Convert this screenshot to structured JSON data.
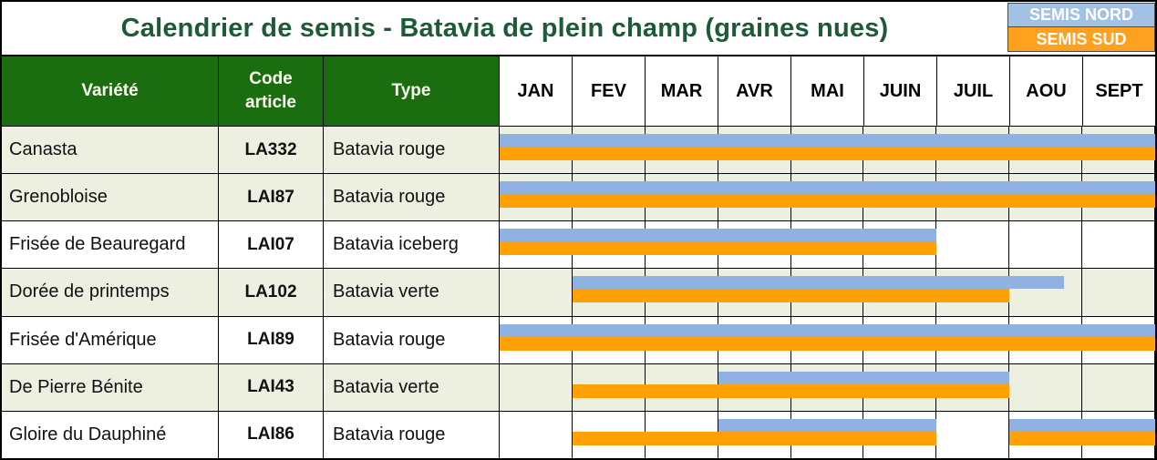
{
  "title": "Calendrier de semis - Batavia de plein champ (graines nues)",
  "legend": {
    "nord": {
      "label": "SEMIS NORD",
      "color": "#a3c1e5"
    },
    "sud": {
      "label": "SEMIS SUD",
      "color": "#ffa11f"
    }
  },
  "columns": {
    "variete": "Variété",
    "code": "Code article",
    "type": "Type"
  },
  "chart_data": {
    "type": "gantt",
    "title": "Calendrier de semis - Batavia de plein champ (graines nues)",
    "months": [
      "JAN",
      "FEV",
      "MAR",
      "AVR",
      "MAI",
      "JUIN",
      "JUIL",
      "AOU",
      "SEPT"
    ],
    "span_units": "month index: 0 = start of JAN, 9 = end of SEPT",
    "series_legend": [
      "SEMIS NORD",
      "SEMIS SUD"
    ],
    "colors": {
      "semis_nord": "#8fb2e3",
      "semis_sud": "#ffa005",
      "header_green": "#1a6e10",
      "title_green": "#1d5b38",
      "row_shade": "#edf0e1"
    },
    "rows": [
      {
        "variete": "Canasta",
        "code": "LA332",
        "type": "Batavia rouge",
        "shaded": true,
        "nord": [
          [
            0,
            9
          ]
        ],
        "sud": [
          [
            0,
            9
          ]
        ]
      },
      {
        "variete": "Grenobloise",
        "code": "LAI87",
        "type": "Batavia rouge",
        "shaded": true,
        "nord": [
          [
            0,
            9
          ]
        ],
        "sud": [
          [
            0,
            9
          ]
        ]
      },
      {
        "variete": "Frisée de Beauregard",
        "code": "LAI07",
        "type": "Batavia iceberg",
        "shaded": false,
        "nord": [
          [
            0,
            6
          ]
        ],
        "sud": [
          [
            0,
            6
          ]
        ]
      },
      {
        "variete": "Dorée de printemps",
        "code": "LA102",
        "type": "Batavia verte",
        "shaded": true,
        "nord": [
          [
            1,
            7.75
          ]
        ],
        "sud": [
          [
            1,
            7
          ]
        ]
      },
      {
        "variete": "Frisée d'Amérique",
        "code": "LAI89",
        "type": "Batavia rouge",
        "shaded": false,
        "nord": [
          [
            0,
            9
          ]
        ],
        "sud": [
          [
            0,
            9
          ]
        ]
      },
      {
        "variete": "De Pierre Bénite",
        "code": "LAI43",
        "type": "Batavia verte",
        "shaded": true,
        "nord": [
          [
            3,
            7
          ]
        ],
        "sud": [
          [
            1,
            7
          ]
        ]
      },
      {
        "variete": "Gloire du Dauphiné",
        "code": "LAI86",
        "type": "Batavia rouge",
        "shaded": false,
        "nord": [
          [
            3,
            6
          ],
          [
            7,
            9
          ]
        ],
        "sud": [
          [
            1,
            6
          ],
          [
            7,
            9
          ]
        ]
      }
    ]
  }
}
